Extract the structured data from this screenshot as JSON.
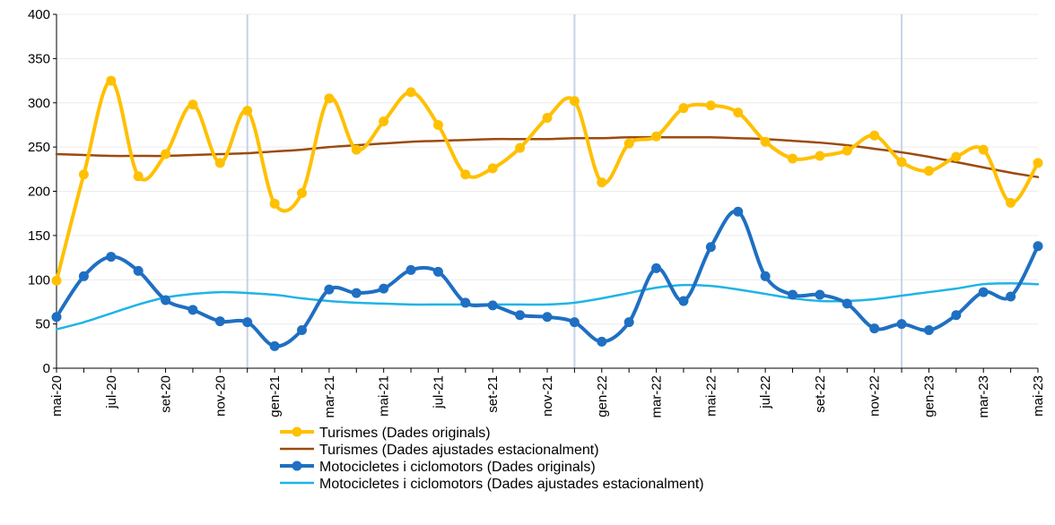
{
  "chart_data": {
    "type": "line",
    "title": "",
    "xlabel": "",
    "ylabel": "",
    "ylim": [
      0,
      400
    ],
    "yticks": [
      0,
      50,
      100,
      150,
      200,
      250,
      300,
      350,
      400
    ],
    "grid": true,
    "legend_position": "bottom",
    "categories": [
      "mai-20",
      "jun-20",
      "jul-20",
      "ago-20",
      "set-20",
      "oct-20",
      "nov-20",
      "des-20",
      "gen-21",
      "feb-21",
      "mar-21",
      "abr-21",
      "mai-21",
      "jun-21",
      "jul-21",
      "ago-21",
      "set-21",
      "oct-21",
      "nov-21",
      "des-21",
      "gen-22",
      "feb-22",
      "mar-22",
      "abr-22",
      "mai-22",
      "jun-22",
      "jul-22",
      "ago-22",
      "set-22",
      "oct-22",
      "nov-22",
      "des-22",
      "gen-23",
      "feb-23",
      "mar-23",
      "abr-23",
      "mai-23"
    ],
    "x_tick_labels": [
      "mai-20",
      "jul-20",
      "set-20",
      "nov-20",
      "gen-21",
      "mar-21",
      "mai-21",
      "jul-21",
      "set-21",
      "nov-21",
      "gen-22",
      "mar-22",
      "mai-22",
      "jul-22",
      "set-22",
      "nov-22",
      "gen-23",
      "mar-23",
      "mai-23"
    ],
    "year_separators_after": [
      "des-20",
      "des-21",
      "des-22"
    ],
    "series": [
      {
        "name": "Turismes (Dades originals)",
        "color": "#FFC000",
        "markers": true,
        "values": [
          99,
          219,
          325,
          217,
          242,
          298,
          232,
          291,
          186,
          198,
          305,
          247,
          279,
          312,
          275,
          219,
          226,
          249,
          283,
          302,
          210,
          254,
          262,
          294,
          297,
          289,
          256,
          237,
          240,
          246,
          263,
          233,
          223,
          239,
          247,
          187,
          232
        ]
      },
      {
        "name": "Turismes (Dades ajustades estacionalment)",
        "color": "#9C4A0E",
        "markers": false,
        "values": [
          242,
          241,
          240,
          240,
          240,
          241,
          242,
          243,
          245,
          247,
          250,
          252,
          254,
          256,
          257,
          258,
          259,
          259,
          259,
          260,
          260,
          261,
          261,
          261,
          261,
          260,
          259,
          257,
          255,
          252,
          248,
          244,
          239,
          233,
          227,
          221,
          216
        ]
      },
      {
        "name": "Motocicletes i ciclomotors (Dades originals)",
        "color": "#1F6FC2",
        "markers": true,
        "values": [
          58,
          104,
          126,
          110,
          77,
          66,
          53,
          52,
          25,
          43,
          89,
          85,
          90,
          111,
          109,
          74,
          71,
          60,
          58,
          52,
          30,
          52,
          113,
          76,
          137,
          177,
          104,
          83,
          83,
          73,
          45,
          50,
          43,
          60,
          86,
          81,
          138
        ]
      },
      {
        "name": "Motocicletes i ciclomotors (Dades ajustades estacionalment)",
        "color": "#1FB4E6",
        "markers": false,
        "values": [
          44,
          52,
          62,
          72,
          80,
          84,
          86,
          85,
          83,
          79,
          76,
          74,
          73,
          72,
          72,
          72,
          72,
          72,
          72,
          74,
          79,
          85,
          91,
          94,
          93,
          89,
          84,
          79,
          76,
          76,
          78,
          82,
          86,
          90,
          95,
          96,
          95
        ]
      }
    ]
  }
}
